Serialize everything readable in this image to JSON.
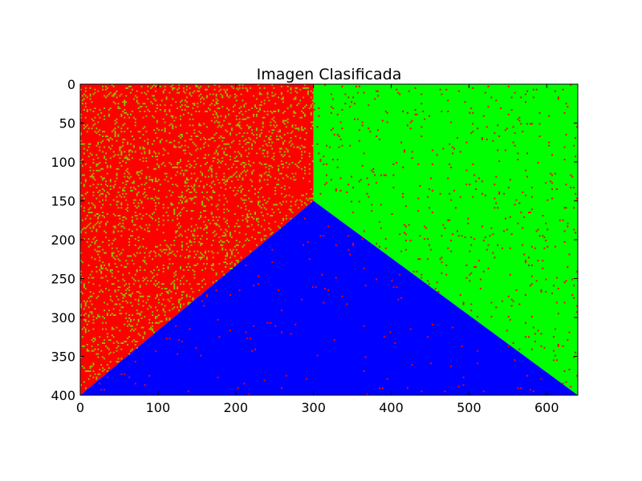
{
  "chart_data": {
    "type": "heatmap",
    "title": "Imagen Clasificada",
    "xlabel": "",
    "ylabel": "",
    "xlim": [
      0,
      640
    ],
    "ylim": [
      400,
      0
    ],
    "image_width": 640,
    "image_height": 400,
    "x_ticks": [
      0,
      100,
      200,
      300,
      400,
      500,
      600
    ],
    "y_ticks": [
      0,
      50,
      100,
      150,
      200,
      250,
      300,
      350,
      400
    ],
    "grid": false,
    "legend": "none",
    "regions": [
      {
        "color": "#ff0000",
        "noise_color": "#90c000",
        "noise_density": 0.12,
        "polygon": [
          [
            0,
            0
          ],
          [
            300,
            0
          ],
          [
            300,
            150
          ],
          [
            0,
            400
          ]
        ]
      },
      {
        "color": "#00ff00",
        "noise_color": "#ff0000",
        "noise_density": 0.02,
        "polygon": [
          [
            300,
            0
          ],
          [
            640,
            0
          ],
          [
            640,
            400
          ],
          [
            300,
            150
          ]
        ]
      },
      {
        "color": "#0000ff",
        "noise_color": "#ff0000",
        "noise_density": 0.006,
        "polygon": [
          [
            0,
            400
          ],
          [
            300,
            150
          ],
          [
            640,
            400
          ]
        ]
      }
    ]
  }
}
